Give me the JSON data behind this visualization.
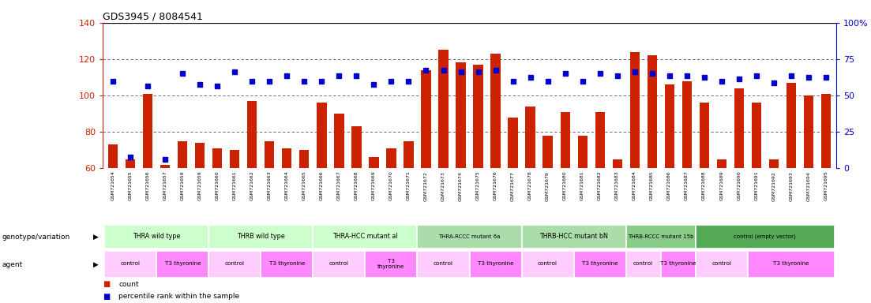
{
  "title": "GDS3945 / 8084541",
  "samples": [
    "GSM721654",
    "GSM721655",
    "GSM721656",
    "GSM721657",
    "GSM721658",
    "GSM721659",
    "GSM721660",
    "GSM721661",
    "GSM721662",
    "GSM721663",
    "GSM721664",
    "GSM721665",
    "GSM721666",
    "GSM721667",
    "GSM721668",
    "GSM721669",
    "GSM721670",
    "GSM721671",
    "GSM721672",
    "GSM721673",
    "GSM721674",
    "GSM721675",
    "GSM721676",
    "GSM721677",
    "GSM721678",
    "GSM721679",
    "GSM721680",
    "GSM721681",
    "GSM721682",
    "GSM721683",
    "GSM721684",
    "GSM721685",
    "GSM721686",
    "GSM721687",
    "GSM721688",
    "GSM721689",
    "GSM721690",
    "GSM721691",
    "GSM721692",
    "GSM721693",
    "GSM721694",
    "GSM721695"
  ],
  "count_values": [
    73,
    65,
    101,
    62,
    75,
    74,
    71,
    70,
    97,
    75,
    71,
    70,
    96,
    90,
    83,
    66,
    71,
    75,
    114,
    125,
    118,
    117,
    123,
    88,
    94,
    78,
    91,
    78,
    91,
    65,
    124,
    122,
    106,
    108,
    96,
    65,
    104,
    96,
    65,
    107,
    100,
    101
  ],
  "percentile_values": [
    108,
    66,
    105,
    65,
    112,
    106,
    105,
    113,
    108,
    108,
    111,
    108,
    108,
    111,
    111,
    106,
    108,
    108,
    114,
    114,
    113,
    113,
    114,
    108,
    110,
    108,
    112,
    108,
    112,
    111,
    113,
    112,
    111,
    111,
    110,
    108,
    109,
    111,
    107,
    111,
    110,
    110
  ],
  "ylim_left": [
    60,
    140
  ],
  "bar_color": "#CC2200",
  "dot_color": "#0000CC",
  "tick_bg_color": "#DDDDDD",
  "genotype_groups": [
    {
      "label": "THRA wild type",
      "start": 0,
      "end": 5,
      "color": "#CCFFCC"
    },
    {
      "label": "THRB wild type",
      "start": 6,
      "end": 11,
      "color": "#CCFFCC"
    },
    {
      "label": "THRA-HCC mutant al",
      "start": 12,
      "end": 17,
      "color": "#CCFFCC"
    },
    {
      "label": "THRA-RCCC mutant 6a",
      "start": 18,
      "end": 23,
      "color": "#AADDAA"
    },
    {
      "label": "THRB-HCC mutant bN",
      "start": 24,
      "end": 29,
      "color": "#AADDAA"
    },
    {
      "label": "THRB-RCCC mutant 15b",
      "start": 30,
      "end": 33,
      "color": "#88CC88"
    },
    {
      "label": "control (empty vector)",
      "start": 34,
      "end": 41,
      "color": "#55AA55"
    }
  ],
  "agent_groups": [
    {
      "label": "control",
      "start": 0,
      "end": 2,
      "color": "#FFCCFF"
    },
    {
      "label": "T3 thyronine",
      "start": 3,
      "end": 5,
      "color": "#FF88FF"
    },
    {
      "label": "control",
      "start": 6,
      "end": 8,
      "color": "#FFCCFF"
    },
    {
      "label": "T3 thyronine",
      "start": 9,
      "end": 11,
      "color": "#FF88FF"
    },
    {
      "label": "control",
      "start": 12,
      "end": 14,
      "color": "#FFCCFF"
    },
    {
      "label": "T3\nthyronine",
      "start": 15,
      "end": 17,
      "color": "#FF88FF"
    },
    {
      "label": "control",
      "start": 18,
      "end": 20,
      "color": "#FFCCFF"
    },
    {
      "label": "T3 thyronine",
      "start": 21,
      "end": 23,
      "color": "#FF88FF"
    },
    {
      "label": "control",
      "start": 24,
      "end": 26,
      "color": "#FFCCFF"
    },
    {
      "label": "T3 thyronine",
      "start": 27,
      "end": 29,
      "color": "#FF88FF"
    },
    {
      "label": "control",
      "start": 30,
      "end": 31,
      "color": "#FFCCFF"
    },
    {
      "label": "T3 thyronine",
      "start": 32,
      "end": 33,
      "color": "#FF88FF"
    },
    {
      "label": "control",
      "start": 34,
      "end": 36,
      "color": "#FFCCFF"
    },
    {
      "label": "T3 thyronine",
      "start": 37,
      "end": 41,
      "color": "#FF88FF"
    }
  ],
  "legend_items": [
    {
      "label": "count",
      "color": "#CC2200"
    },
    {
      "label": "percentile rank within the sample",
      "color": "#0000CC"
    }
  ]
}
